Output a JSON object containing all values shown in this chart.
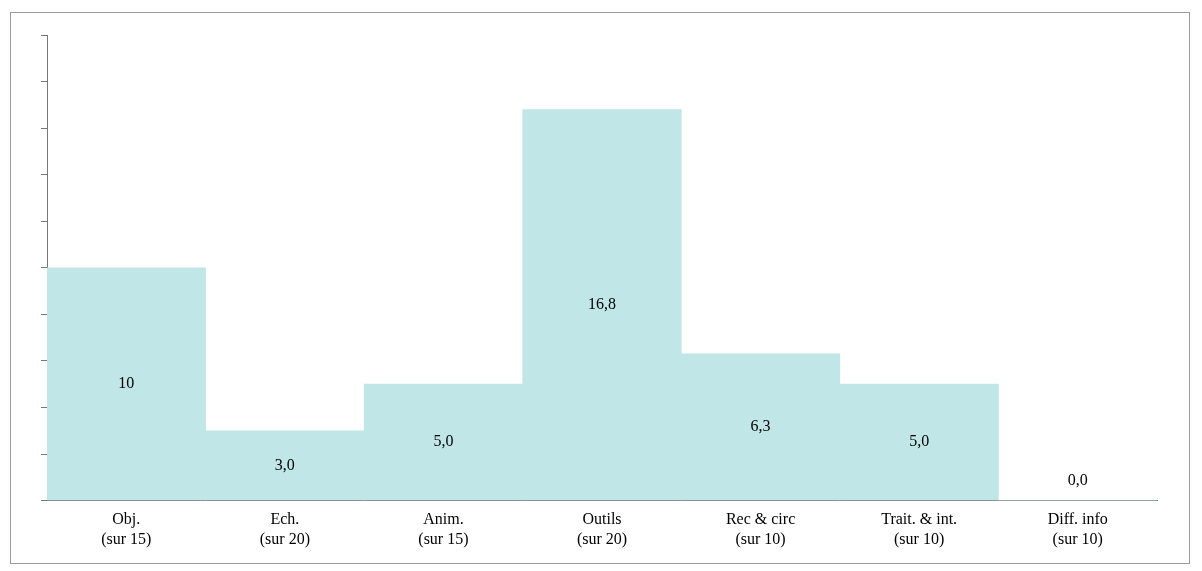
{
  "chart_data": {
    "type": "bar",
    "categories": [
      "Obj.\n(sur 15)",
      "Ech.\n(sur 20)",
      "Anim.\n(sur 15)",
      "Outils\n(sur 20)",
      "Rec & circ\n(sur 10)",
      "Trait. & int.\n(sur 10)",
      "Diff. info\n(sur 10)"
    ],
    "values": [
      10,
      3,
      5,
      16.8,
      6.3,
      5,
      0
    ],
    "value_labels": [
      "10",
      "3,0",
      "5,0",
      "16,8",
      "6,3",
      "5,0",
      "0,0"
    ],
    "ylim": [
      0,
      20
    ],
    "yticks": [
      {
        "value": 0,
        "label": null
      },
      {
        "value": 2,
        "label": null
      },
      {
        "value": 4,
        "label": null
      },
      {
        "value": 6,
        "label": null
      },
      {
        "value": 8,
        "label": null
      },
      {
        "value": 10,
        "label": null
      },
      {
        "value": 12,
        "label": null
      },
      {
        "value": 14,
        "label": null
      },
      {
        "value": 16,
        "label": null
      },
      {
        "value": 18,
        "label": null
      },
      {
        "value": 20,
        "label": null
      }
    ],
    "tick_labels": "x",
    "color": "#c0e6e8",
    "grid": false,
    "legend": false
  }
}
